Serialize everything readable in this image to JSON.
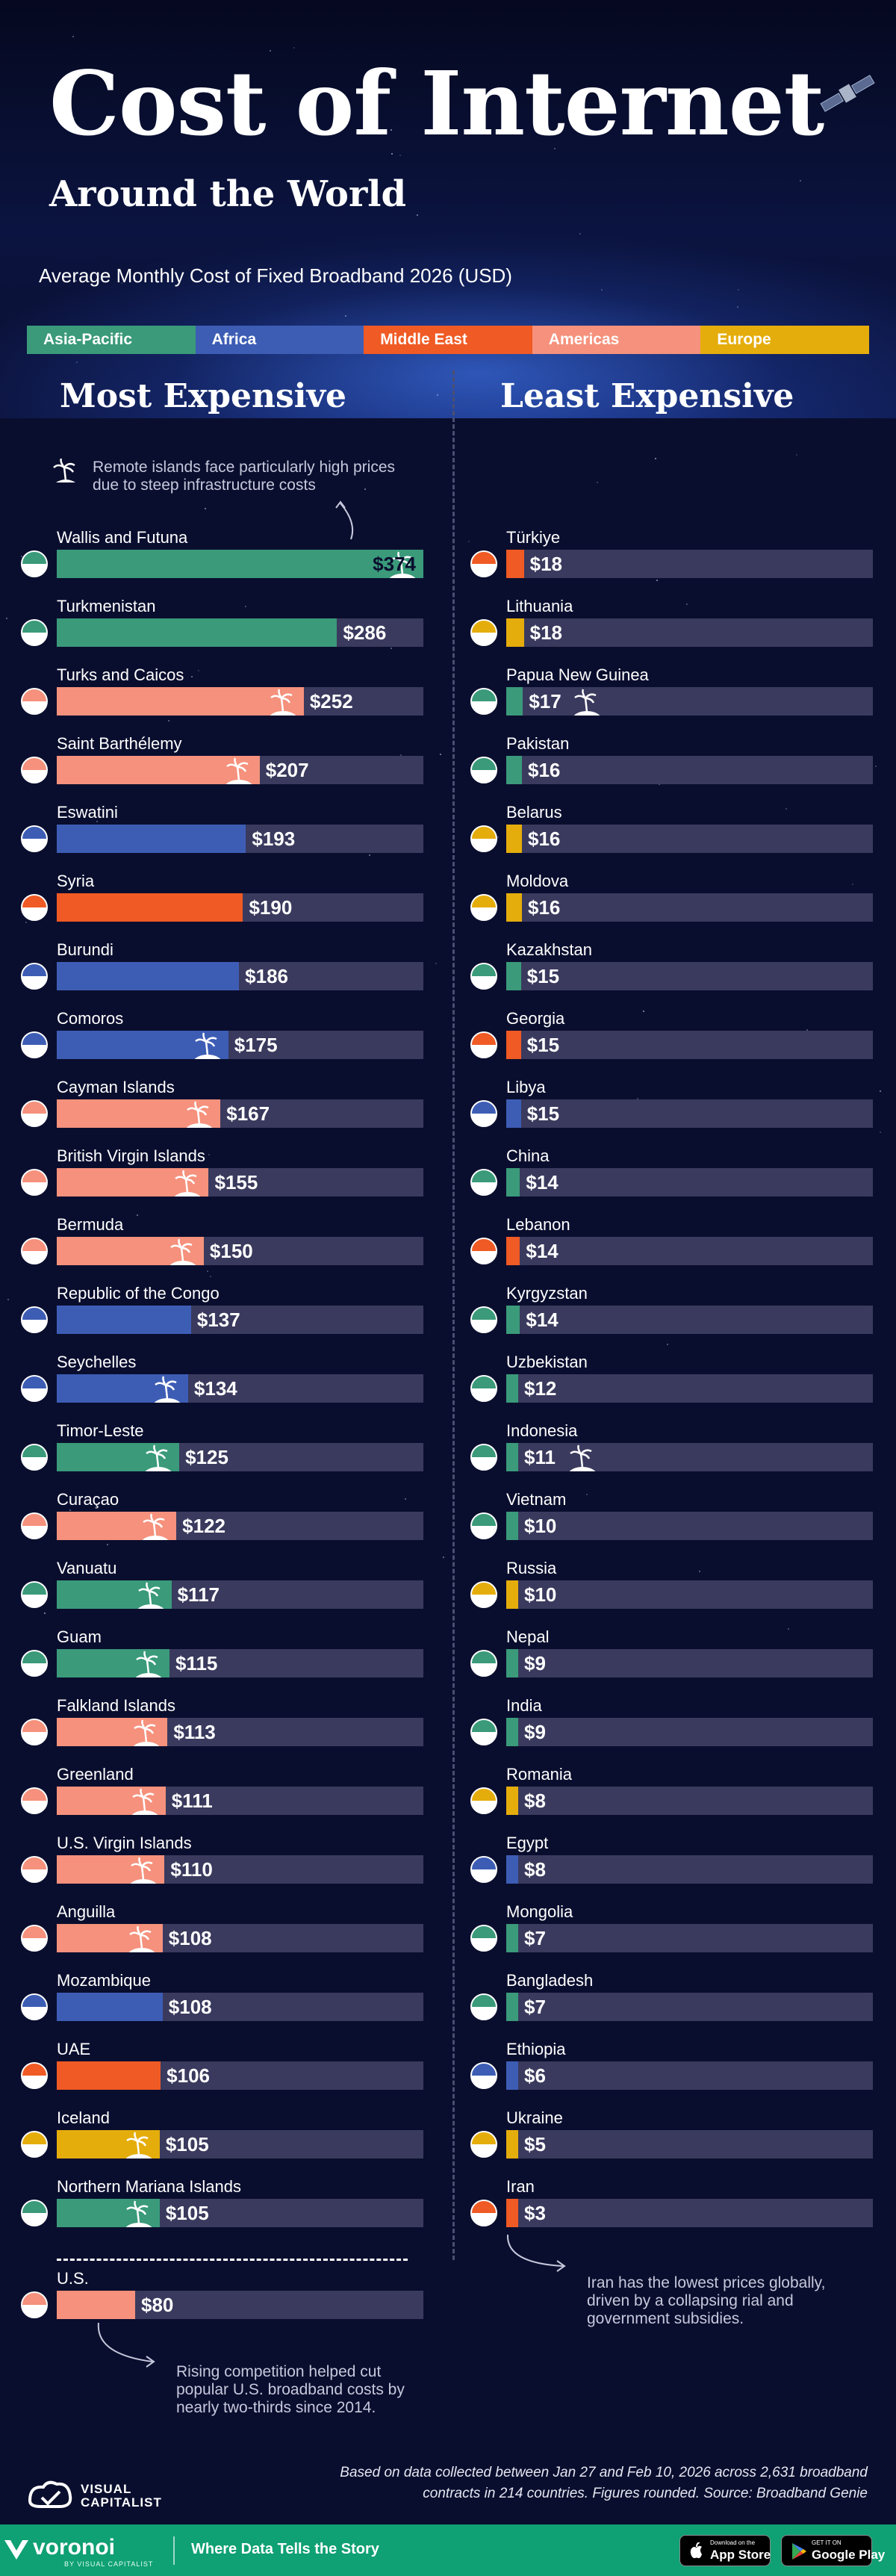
{
  "header": {
    "title": "Cost of Internet",
    "subtitle": "Around the World",
    "chart_subtitle": "Average Monthly Cost of Fixed Broadband 2026 (USD)"
  },
  "legend": [
    {
      "label": "Asia-Pacific",
      "color": "#3a9a7a"
    },
    {
      "label": "Africa",
      "color": "#3d5db5"
    },
    {
      "label": "Middle East",
      "color": "#f05a24"
    },
    {
      "label": "Americas",
      "color": "#f5917c"
    },
    {
      "label": "Europe",
      "color": "#e5ad0c"
    }
  ],
  "columns": {
    "left_title": "Most Expensive",
    "right_title": "Least Expensive"
  },
  "notes": {
    "islands": "Remote islands face particularly high prices due to steep infrastructure costs",
    "iran": "Iran has the lowest prices globally, driven by a collapsing rial and government subsidies.",
    "us": "Rising competition helped cut popular U.S. broadband costs by nearly two-thirds since 2014."
  },
  "icons": {
    "palm": "palm-tree-island-icon",
    "flag": "country-flag-icon"
  },
  "footer": {
    "source_line_1": "Based on data collected between Jan 27 and Feb 10, 2026 across 2,631 broadband",
    "source_line_2": "contracts in 214 countries. Figures rounded. Source: Broadband Genie",
    "brand_line_1": "VISUAL",
    "brand_line_2": "CAPITALIST",
    "voronoi": "voronoi",
    "voronoi_sub": "BY VISUAL CAPITALIST",
    "tagline": "Where Data Tells the Story",
    "appstore_small": "Download on the",
    "appstore_big": "App Store",
    "googleplay_small": "GET IT ON",
    "googleplay_big": "Google Play"
  },
  "chart_data": [
    {
      "type": "bar",
      "title": "Most Expensive",
      "unit": "USD per month",
      "xlim": [
        0,
        374
      ],
      "categories": [
        "Wallis and Futuna",
        "Turkmenistan",
        "Turks and Caicos",
        "Saint Barthélemy",
        "Eswatini",
        "Syria",
        "Burundi",
        "Comoros",
        "Cayman Islands",
        "British Virgin Islands",
        "Bermuda",
        "Republic of the Congo",
        "Seychelles",
        "Timor-Leste",
        "Curaçao",
        "Vanuatu",
        "Guam",
        "Falkland Islands",
        "Greenland",
        "U.S. Virgin Islands",
        "Anguilla",
        "Mozambique",
        "UAE",
        "Iceland",
        "Northern Mariana Islands",
        "U.S."
      ],
      "values": [
        374,
        286,
        252,
        207,
        193,
        190,
        186,
        175,
        167,
        155,
        150,
        137,
        134,
        125,
        122,
        117,
        115,
        113,
        111,
        110,
        108,
        108,
        106,
        105,
        105,
        80
      ],
      "labels": [
        "$374",
        "$286",
        "$252",
        "$207",
        "$193",
        "$190",
        "$186",
        "$175",
        "$167",
        "$155",
        "$150",
        "$137",
        "$134",
        "$125",
        "$122",
        "$117",
        "$115",
        "$113",
        "$111",
        "$110",
        "$108",
        "$108",
        "$106",
        "$105",
        "$105",
        "$80"
      ],
      "regions": [
        "Asia-Pacific",
        "Asia-Pacific",
        "Americas",
        "Americas",
        "Africa",
        "Middle East",
        "Africa",
        "Africa",
        "Americas",
        "Americas",
        "Americas",
        "Africa",
        "Africa",
        "Asia-Pacific",
        "Americas",
        "Asia-Pacific",
        "Asia-Pacific",
        "Americas",
        "Americas",
        "Americas",
        "Americas",
        "Africa",
        "Middle East",
        "Europe",
        "Asia-Pacific",
        "Americas"
      ],
      "island": [
        true,
        false,
        true,
        true,
        false,
        false,
        false,
        true,
        true,
        true,
        true,
        false,
        true,
        true,
        true,
        true,
        true,
        true,
        true,
        true,
        true,
        false,
        false,
        true,
        true,
        false
      ]
    },
    {
      "type": "bar",
      "title": "Least Expensive",
      "unit": "USD per month",
      "xlim": [
        0,
        374
      ],
      "categories": [
        "Türkiye",
        "Lithuania",
        "Papua New Guinea",
        "Pakistan",
        "Belarus",
        "Moldova",
        "Kazakhstan",
        "Georgia",
        "Libya",
        "China",
        "Lebanon",
        "Kyrgyzstan",
        "Uzbekistan",
        "Indonesia",
        "Vietnam",
        "Russia",
        "Nepal",
        "India",
        "Romania",
        "Egypt",
        "Mongolia",
        "Bangladesh",
        "Ethiopia",
        "Ukraine",
        "Iran"
      ],
      "values": [
        18,
        18,
        17,
        16,
        16,
        16,
        15,
        15,
        15,
        14,
        14,
        14,
        12,
        11,
        10,
        10,
        9,
        9,
        8,
        8,
        7,
        7,
        6,
        5,
        3
      ],
      "labels": [
        "$18",
        "$18",
        "$17",
        "$16",
        "$16",
        "$16",
        "$15",
        "$15",
        "$15",
        "$14",
        "$14",
        "$14",
        "$12",
        "$11",
        "$10",
        "$10",
        "$9",
        "$9",
        "$8",
        "$8",
        "$7",
        "$7",
        "$6",
        "$5",
        "$3"
      ],
      "regions": [
        "Middle East",
        "Europe",
        "Asia-Pacific",
        "Asia-Pacific",
        "Europe",
        "Europe",
        "Asia-Pacific",
        "Middle East",
        "Africa",
        "Asia-Pacific",
        "Middle East",
        "Asia-Pacific",
        "Asia-Pacific",
        "Asia-Pacific",
        "Asia-Pacific",
        "Europe",
        "Asia-Pacific",
        "Asia-Pacific",
        "Europe",
        "Africa",
        "Asia-Pacific",
        "Asia-Pacific",
        "Africa",
        "Europe",
        "Middle East"
      ],
      "island": [
        false,
        false,
        true,
        false,
        false,
        false,
        false,
        false,
        false,
        false,
        false,
        false,
        false,
        true,
        false,
        false,
        false,
        false,
        false,
        false,
        false,
        false,
        false,
        false,
        false
      ]
    }
  ]
}
